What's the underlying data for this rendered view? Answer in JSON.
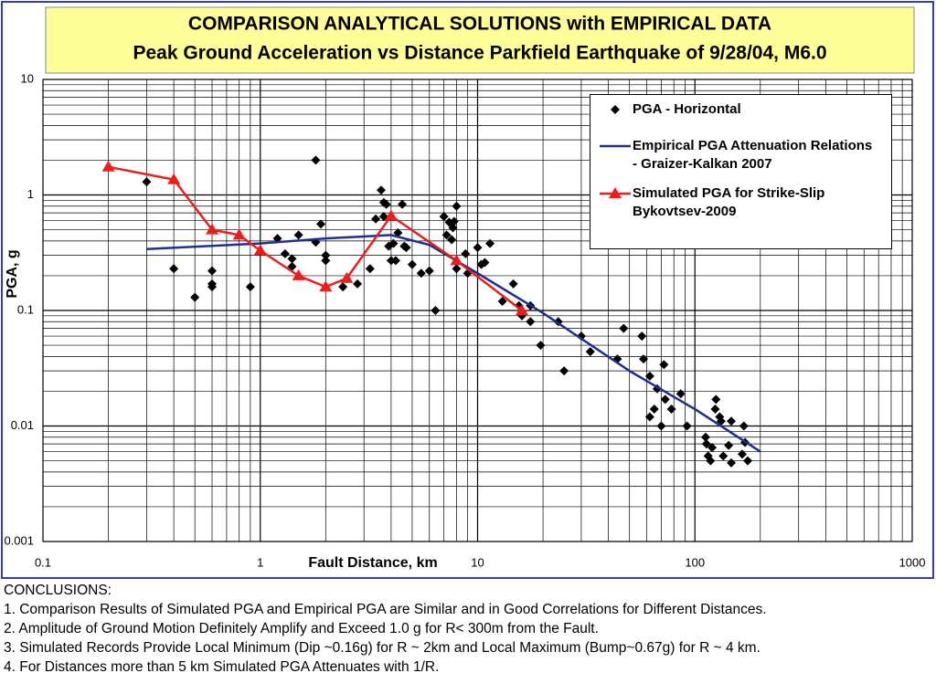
{
  "chart_data": {
    "type": "scatter",
    "title": "COMPARISON ANALYTICAL SOLUTIONS  with EMPIRICAL DATA",
    "subtitle": "Peak Ground Acceleration vs Distance Parkfield Earthquake of 9/28/04, M6.0",
    "x_label": "Fault Distance, km",
    "y_label": "PGA, g",
    "xlog": true,
    "ylog": true,
    "grid": true,
    "minor_grid": true,
    "legend": "upper right",
    "xlim": [
      0.1,
      1000
    ],
    "xticks": [
      0.1,
      1,
      10,
      100,
      1000
    ],
    "ylim": [
      0.001,
      10
    ],
    "yticks": [
      0.001,
      0.01,
      0.1,
      1,
      10
    ],
    "series": [
      {
        "name": "PGA - Horizontal",
        "type": "scatter",
        "marker": "diamond",
        "color": "#000000",
        "x": [
          0.3,
          0.4,
          0.5,
          0.6,
          0.6,
          0.6,
          0.9,
          1.2,
          1.3,
          1.4,
          1.4,
          1.5,
          1.8,
          1.8,
          1.9,
          2.0,
          2.0,
          2.4,
          2.8,
          3.2,
          3.4,
          3.6,
          3.7,
          3.7,
          3.8,
          3.9,
          4.0,
          4.1,
          4.2,
          4.3,
          4.5,
          4.6,
          4.7,
          5.0,
          5.5,
          6.0,
          6.4,
          7.0,
          7.2,
          7.4,
          7.6,
          7.7,
          7.8,
          8.0,
          8.0,
          8.8,
          9.0,
          10,
          10.4,
          10.8,
          11.4,
          13,
          14.6,
          15.5,
          16,
          17.5,
          17.5,
          19.5,
          23.5,
          25,
          30,
          33,
          44,
          47,
          57,
          58,
          62,
          62,
          65,
          67,
          70,
          72,
          73,
          78,
          86,
          92,
          112,
          113,
          115,
          118,
          120,
          124,
          125,
          130,
          132,
          135,
          143,
          147,
          147,
          165,
          168,
          170,
          175
        ],
        "values": [
          1.3,
          0.23,
          0.13,
          0.22,
          0.17,
          0.16,
          0.16,
          0.42,
          0.31,
          0.28,
          0.24,
          0.45,
          2.0,
          0.39,
          0.56,
          0.3,
          0.27,
          0.16,
          0.17,
          0.23,
          0.62,
          1.1,
          0.86,
          0.65,
          0.83,
          0.36,
          0.27,
          0.38,
          0.27,
          0.47,
          0.83,
          0.36,
          0.35,
          0.25,
          0.21,
          0.22,
          0.1,
          0.65,
          0.45,
          0.58,
          0.41,
          0.52,
          0.59,
          0.8,
          0.23,
          0.31,
          0.21,
          0.35,
          0.25,
          0.26,
          0.38,
          0.12,
          0.17,
          0.11,
          0.09,
          0.08,
          0.11,
          0.05,
          0.08,
          0.03,
          0.06,
          0.044,
          0.038,
          0.07,
          0.06,
          0.038,
          0.027,
          0.012,
          0.014,
          0.021,
          0.01,
          0.034,
          0.017,
          0.014,
          0.019,
          0.01,
          0.008,
          0.007,
          0.0055,
          0.005,
          0.0065,
          0.014,
          0.017,
          0.012,
          0.011,
          0.0055,
          0.0068,
          0.0048,
          0.011,
          0.0057,
          0.01,
          0.0072,
          0.005
        ]
      },
      {
        "name": "Empirical PGA Attenuation Relations - Graizer-Kalkan 2007",
        "type": "line",
        "color": "#1f2f8f",
        "x": [
          0.3,
          1,
          2,
          4,
          6,
          10,
          20,
          50,
          100,
          200
        ],
        "values": [
          0.34,
          0.38,
          0.42,
          0.45,
          0.37,
          0.21,
          0.095,
          0.03,
          0.014,
          0.006
        ]
      },
      {
        "name": "Simulated PGA for Strike-Slip Bykovtsev-2009",
        "type": "line",
        "marker": "triangle",
        "color": "#ee1c1c",
        "x": [
          0.2,
          0.4,
          0.6,
          0.8,
          1.0,
          1.5,
          2.0,
          2.5,
          4.0,
          8,
          16
        ],
        "values": [
          1.75,
          1.36,
          0.5,
          0.45,
          0.33,
          0.2,
          0.16,
          0.19,
          0.66,
          0.27,
          0.1
        ]
      }
    ]
  },
  "conclusions": {
    "heading": "CONCLUSIONS:",
    "items": [
      "1. Comparison Results of Simulated PGA and Empirical PGA  are Similar and in Good Correlations for Different Distances.",
      "2. Amplitude of Ground Motion Definitely Amplify and Exceed 1.0 g for R< 300m from the Fault.",
      "3. Simulated Records Provide Local Minimum (Dip ~0.16g) for R ~ 2km and Local Maximum (Bump~0.67g) for R ~ 4 km.",
      "4. For Distances more than 5 km Simulated PGA Attenuates with 1/R."
    ]
  }
}
